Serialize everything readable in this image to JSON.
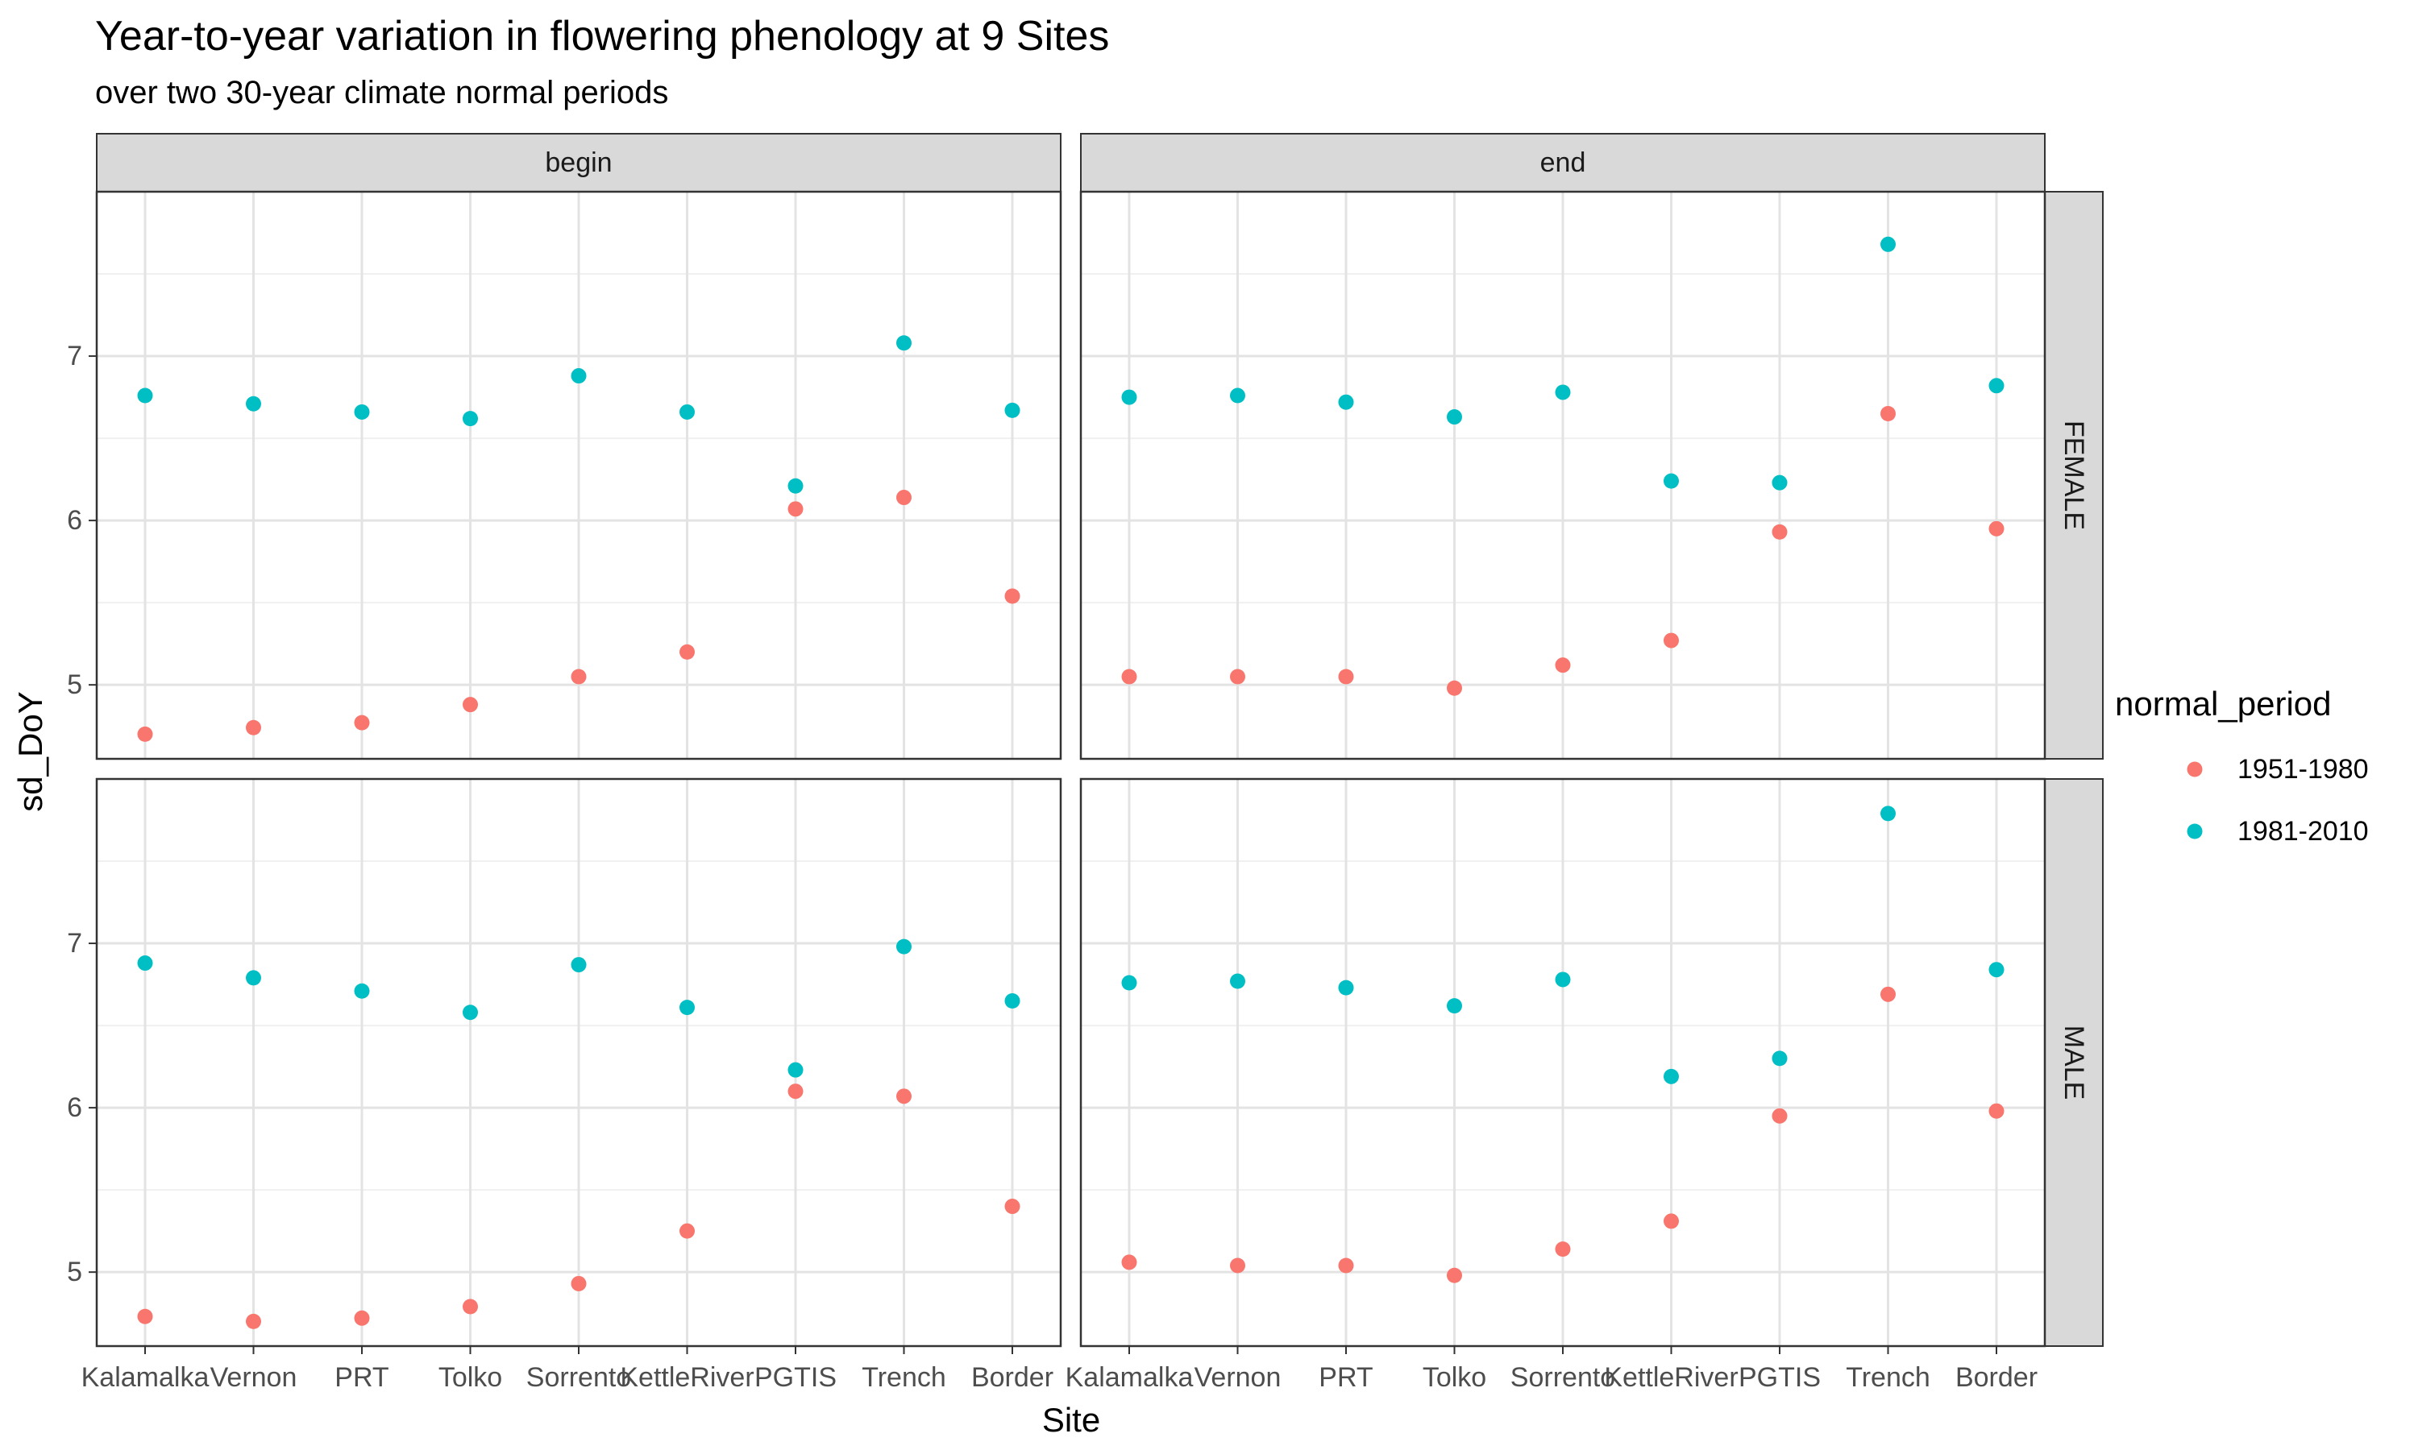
{
  "chart_data": {
    "type": "scatter",
    "title": "Year-to-year variation in flowering phenology at 9 Sites",
    "subtitle": "over two 30-year climate normal periods",
    "xlabel": "Site",
    "ylabel": "sd_DoY",
    "categories": [
      "Kalamalka",
      "Vernon",
      "PRT",
      "Tolko",
      "Sorrento",
      "KettleRiver",
      "PGTIS",
      "Trench",
      "Border"
    ],
    "ylim": [
      4.55,
      8.0
    ],
    "yticks": [
      5,
      6,
      7
    ],
    "grid": true,
    "facet_columns": [
      "begin",
      "end"
    ],
    "facet_rows": [
      "FEMALE",
      "MALE"
    ],
    "legend": {
      "title": "normal_period",
      "position": "right",
      "entries": [
        "1951-1980",
        "1981-2010"
      ]
    },
    "colors": {
      "1951-1980": "#F8766D",
      "1981-2010": "#00BFC4"
    },
    "panels": [
      {
        "column": "begin",
        "row": "FEMALE",
        "series": [
          {
            "name": "1951-1980",
            "values": [
              4.7,
              4.74,
              4.77,
              4.88,
              5.05,
              5.2,
              6.07,
              6.14,
              5.54
            ]
          },
          {
            "name": "1981-2010",
            "values": [
              6.76,
              6.71,
              6.66,
              6.62,
              6.88,
              6.66,
              6.21,
              7.08,
              6.67
            ]
          }
        ]
      },
      {
        "column": "end",
        "row": "FEMALE",
        "series": [
          {
            "name": "1951-1980",
            "values": [
              5.05,
              5.05,
              5.05,
              4.98,
              5.12,
              5.27,
              5.93,
              6.65,
              5.95
            ]
          },
          {
            "name": "1981-2010",
            "values": [
              6.75,
              6.76,
              6.72,
              6.63,
              6.78,
              6.24,
              6.23,
              7.68,
              6.82
            ]
          }
        ]
      },
      {
        "column": "begin",
        "row": "MALE",
        "series": [
          {
            "name": "1951-1980",
            "values": [
              4.73,
              4.7,
              4.72,
              4.79,
              4.93,
              5.25,
              6.1,
              6.07,
              5.4
            ]
          },
          {
            "name": "1981-2010",
            "values": [
              6.88,
              6.79,
              6.71,
              6.58,
              6.87,
              6.61,
              6.23,
              6.98,
              6.65
            ]
          }
        ]
      },
      {
        "column": "end",
        "row": "MALE",
        "series": [
          {
            "name": "1951-1980",
            "values": [
              5.06,
              5.04,
              5.04,
              4.98,
              5.14,
              5.31,
              5.95,
              6.69,
              5.98
            ]
          },
          {
            "name": "1981-2010",
            "values": [
              6.76,
              6.77,
              6.73,
              6.62,
              6.78,
              6.19,
              6.3,
              7.79,
              6.84
            ]
          }
        ]
      }
    ]
  }
}
